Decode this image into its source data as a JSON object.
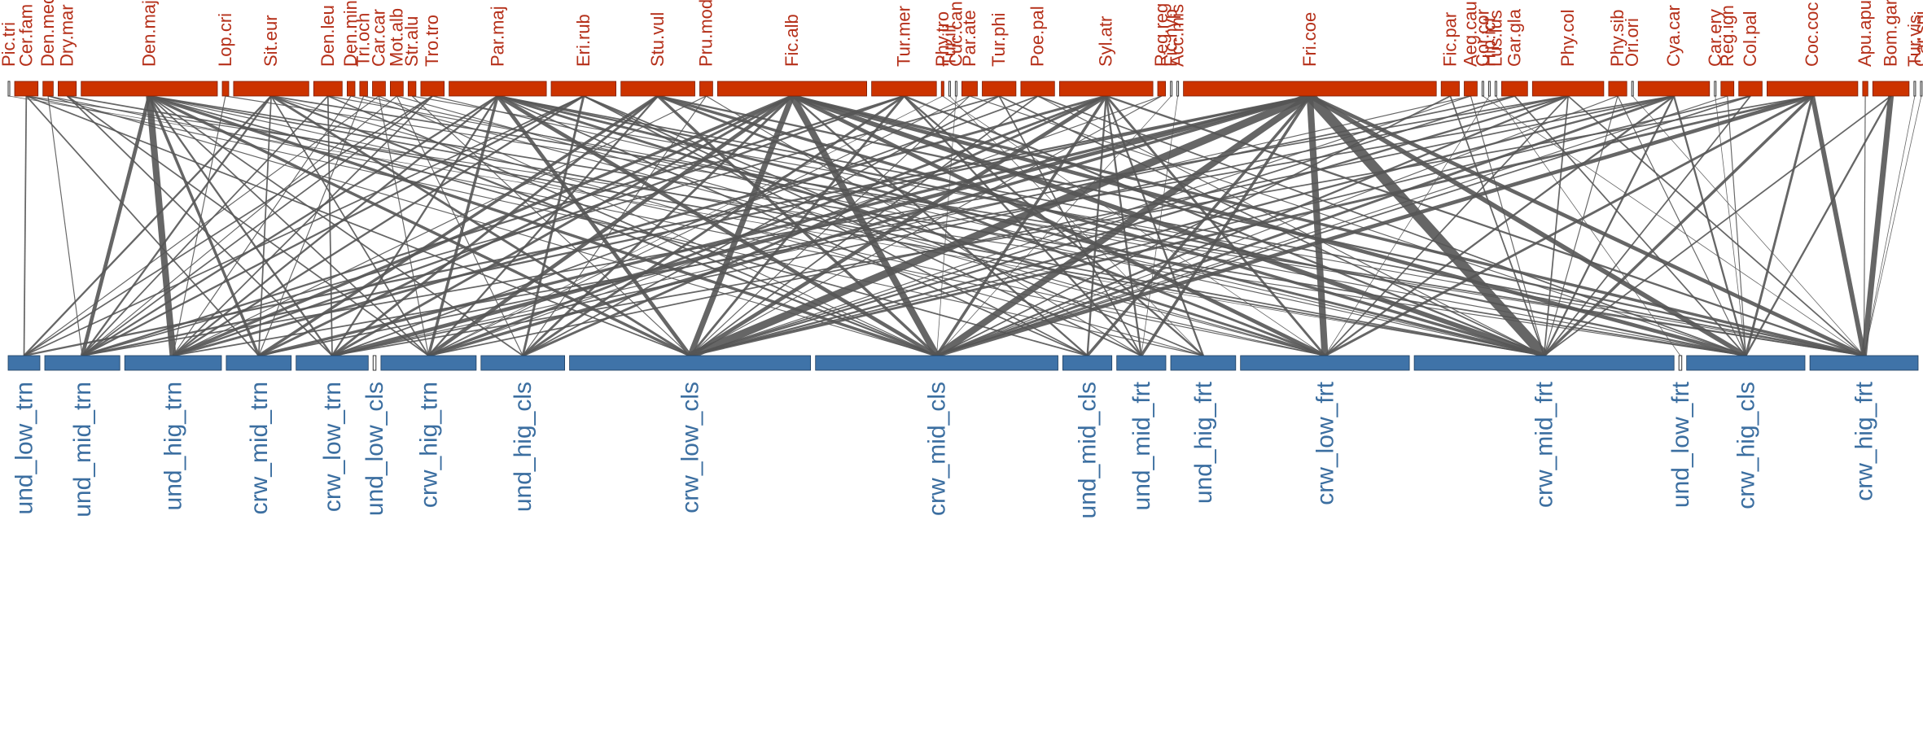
{
  "chart_data": {
    "type": "bipartite-network",
    "colors": {
      "top_nodes": "#cc3300",
      "bottom_nodes": "#3f73a8",
      "links": "#555555",
      "top_labels": "#b5301a",
      "bottom_labels": "#3b6ea0"
    },
    "top_nodes": [
      {
        "label": "Pic.tri",
        "weight": 1
      },
      {
        "label": "Cer.fam",
        "weight": 18
      },
      {
        "label": "Den.med",
        "weight": 8
      },
      {
        "label": "Dry.mar",
        "weight": 14
      },
      {
        "label": "Den.maj",
        "weight": 105
      },
      {
        "label": "Lop.cri",
        "weight": 5
      },
      {
        "label": "Sit.eur",
        "weight": 58
      },
      {
        "label": "Den.leu",
        "weight": 22
      },
      {
        "label": "Den.min",
        "weight": 6
      },
      {
        "label": "Tri.och",
        "weight": 6
      },
      {
        "label": "Car.car",
        "weight": 10
      },
      {
        "label": "Mot.alb",
        "weight": 10
      },
      {
        "label": "Str.alu",
        "weight": 6
      },
      {
        "label": "Tro.tro",
        "weight": 18
      },
      {
        "label": "Par.maj",
        "weight": 75
      },
      {
        "label": "Eri.rub",
        "weight": 50
      },
      {
        "label": "Stu.vul",
        "weight": 57
      },
      {
        "label": "Pru.mod",
        "weight": 10
      },
      {
        "label": "Fic.alb",
        "weight": 115
      },
      {
        "label": "Tur.mer",
        "weight": 50
      },
      {
        "label": "Phy.tro",
        "weight": 2
      },
      {
        "label": "Tur.ili",
        "weight": 1
      },
      {
        "label": "Cuc.can",
        "weight": 1
      },
      {
        "label": "Par.ate",
        "weight": 12
      },
      {
        "label": "Tur.phi",
        "weight": 26
      },
      {
        "label": "Poe.pal",
        "weight": 26
      },
      {
        "label": "Syl.atr",
        "weight": 72
      },
      {
        "label": "Reg.reg",
        "weight": 6
      },
      {
        "label": "Fic.hyp",
        "weight": 1
      },
      {
        "label": "Acc.mis",
        "weight": 1
      },
      {
        "label": "Fri.coe",
        "weight": 195
      },
      {
        "label": "Fic.par",
        "weight": 14
      },
      {
        "label": "Aeg.cau",
        "weight": 10
      },
      {
        "label": "Cor.cor",
        "weight": 1
      },
      {
        "label": "Hip.ict",
        "weight": 1
      },
      {
        "label": "Lus.lus",
        "weight": 1
      },
      {
        "label": "Gar.gla",
        "weight": 20
      },
      {
        "label": "Phy.col",
        "weight": 55
      },
      {
        "label": "Phy.sib",
        "weight": 14
      },
      {
        "label": "Ori.ori",
        "weight": 1
      },
      {
        "label": "Cya.car",
        "weight": 55
      },
      {
        "label": "Car.ery",
        "weight": 1
      },
      {
        "label": "Reg.ign",
        "weight": 10
      },
      {
        "label": "Col.pal",
        "weight": 18
      },
      {
        "label": "Coc.coc",
        "weight": 70
      },
      {
        "label": "Apu.apu",
        "weight": 4
      },
      {
        "label": "Bom.gar",
        "weight": 28
      },
      {
        "label": "Tur.vis",
        "weight": 1
      },
      {
        "label": "Car.spi",
        "weight": 1
      }
    ],
    "bottom_nodes": [
      {
        "label": "und_low_trn",
        "weight": 22
      },
      {
        "label": "und_mid_trn",
        "weight": 52
      },
      {
        "label": "und_hig_trn",
        "weight": 67
      },
      {
        "label": "crw_mid_trn",
        "weight": 45
      },
      {
        "label": "crw_low_trn",
        "weight": 50
      },
      {
        "label": "und_low_cls",
        "weight": 2
      },
      {
        "label": "crw_hig_trn",
        "weight": 66
      },
      {
        "label": "und_hig_cls",
        "weight": 58
      },
      {
        "label": "crw_low_cls",
        "weight": 167
      },
      {
        "label": "crw_mid_cls",
        "weight": 168
      },
      {
        "label": "und_mid_cls",
        "weight": 34
      },
      {
        "label": "und_mid_frt",
        "weight": 34
      },
      {
        "label": "und_hig_frt",
        "weight": 45
      },
      {
        "label": "crw_low_frt",
        "weight": 117
      },
      {
        "label": "crw_mid_frt",
        "weight": 180
      },
      {
        "label": "und_low_frt",
        "weight": 2
      },
      {
        "label": "crw_hig_cls",
        "weight": 82
      },
      {
        "label": "crw_hig_frt",
        "weight": 75
      }
    ],
    "links": [
      [
        "Pic.tri",
        "crw_mid_frt",
        1
      ],
      [
        "Cer.fam",
        "und_low_trn",
        3
      ],
      [
        "Cer.fam",
        "crw_mid_trn",
        3
      ],
      [
        "Cer.fam",
        "crw_low_cls",
        3
      ],
      [
        "Cer.fam",
        "und_hig_frt",
        2
      ],
      [
        "Cer.fam",
        "crw_hig_cls",
        2
      ],
      [
        "Den.med",
        "und_mid_trn",
        2
      ],
      [
        "Den.med",
        "crw_low_frt",
        2
      ],
      [
        "Den.med",
        "crw_mid_cls",
        2
      ],
      [
        "Dry.mar",
        "crw_low_trn",
        3
      ],
      [
        "Dry.mar",
        "crw_hig_trn",
        3
      ],
      [
        "Dry.mar",
        "crw_mid_frt",
        3
      ],
      [
        "Den.maj",
        "und_mid_trn",
        8
      ],
      [
        "Den.maj",
        "und_hig_trn",
        14
      ],
      [
        "Den.maj",
        "crw_mid_trn",
        6
      ],
      [
        "Den.maj",
        "crw_low_trn",
        4
      ],
      [
        "Den.maj",
        "crw_hig_trn",
        3
      ],
      [
        "Den.maj",
        "crw_low_cls",
        6
      ],
      [
        "Den.maj",
        "crw_mid_cls",
        6
      ],
      [
        "Den.maj",
        "und_mid_cls",
        3
      ],
      [
        "Den.maj",
        "crw_hig_cls",
        3
      ],
      [
        "Den.maj",
        "crw_mid_frt",
        3
      ],
      [
        "Den.maj",
        "crw_low_frt",
        2
      ],
      [
        "Den.maj",
        "und_hig_cls",
        3
      ],
      [
        "Lop.cri",
        "und_hig_trn",
        2
      ],
      [
        "Lop.cri",
        "crw_hig_frt",
        2
      ],
      [
        "Sit.eur",
        "und_low_trn",
        4
      ],
      [
        "Sit.eur",
        "und_mid_trn",
        4
      ],
      [
        "Sit.eur",
        "crw_mid_trn",
        3
      ],
      [
        "Sit.eur",
        "crw_hig_trn",
        3
      ],
      [
        "Sit.eur",
        "crw_low_cls",
        5
      ],
      [
        "Sit.eur",
        "crw_mid_cls",
        4
      ],
      [
        "Sit.eur",
        "und_hig_frt",
        2
      ],
      [
        "Sit.eur",
        "crw_hig_frt",
        3
      ],
      [
        "Den.leu",
        "und_mid_trn",
        3
      ],
      [
        "Den.leu",
        "crw_low_trn",
        3
      ],
      [
        "Den.leu",
        "crw_mid_cls",
        3
      ],
      [
        "Den.leu",
        "crw_hig_cls",
        2
      ],
      [
        "Den.min",
        "und_hig_trn",
        2
      ],
      [
        "Den.min",
        "crw_low_frt",
        2
      ],
      [
        "Tri.och",
        "crw_mid_trn",
        2
      ],
      [
        "Tri.och",
        "crw_mid_frt",
        2
      ],
      [
        "Car.car",
        "und_low_trn",
        2
      ],
      [
        "Car.car",
        "crw_hig_trn",
        2
      ],
      [
        "Car.car",
        "crw_mid_cls",
        2
      ],
      [
        "Mot.alb",
        "und_mid_trn",
        2
      ],
      [
        "Mot.alb",
        "und_hig_cls",
        2
      ],
      [
        "Mot.alb",
        "crw_low_frt",
        2
      ],
      [
        "Str.alu",
        "crw_low_cls",
        2
      ],
      [
        "Str.alu",
        "crw_hig_frt",
        2
      ],
      [
        "Tro.tro",
        "und_low_trn",
        3
      ],
      [
        "Tro.tro",
        "und_mid_trn",
        3
      ],
      [
        "Tro.tro",
        "und_hig_trn",
        3
      ],
      [
        "Tro.tro",
        "crw_mid_frt",
        2
      ],
      [
        "Par.maj",
        "und_mid_trn",
        4
      ],
      [
        "Par.maj",
        "und_hig_trn",
        4
      ],
      [
        "Par.maj",
        "crw_low_trn",
        4
      ],
      [
        "Par.maj",
        "crw_hig_trn",
        6
      ],
      [
        "Par.maj",
        "crw_low_cls",
        8
      ],
      [
        "Par.maj",
        "crw_mid_cls",
        8
      ],
      [
        "Par.maj",
        "und_mid_cls",
        3
      ],
      [
        "Par.maj",
        "crw_low_frt",
        5
      ],
      [
        "Par.maj",
        "crw_mid_frt",
        5
      ],
      [
        "Par.maj",
        "crw_hig_cls",
        4
      ],
      [
        "Par.maj",
        "crw_hig_frt",
        3
      ],
      [
        "Eri.rub",
        "und_low_trn",
        3
      ],
      [
        "Eri.rub",
        "und_mid_trn",
        4
      ],
      [
        "Eri.rub",
        "und_hig_trn",
        4
      ],
      [
        "Eri.rub",
        "und_hig_cls",
        5
      ],
      [
        "Eri.rub",
        "und_mid_cls",
        3
      ],
      [
        "Eri.rub",
        "und_mid_frt",
        3
      ],
      [
        "Eri.rub",
        "und_hig_frt",
        3
      ],
      [
        "Stu.vul",
        "crw_mid_trn",
        6
      ],
      [
        "Stu.vul",
        "crw_low_trn",
        5
      ],
      [
        "Stu.vul",
        "crw_hig_trn",
        4
      ],
      [
        "Stu.vul",
        "crw_mid_cls",
        6
      ],
      [
        "Stu.vul",
        "crw_low_frt",
        5
      ],
      [
        "Stu.vul",
        "crw_mid_frt",
        6
      ],
      [
        "Stu.vul",
        "crw_hig_frt",
        4
      ],
      [
        "Pru.mod",
        "und_hig_trn",
        2
      ],
      [
        "Pru.mod",
        "und_mid_frt",
        2
      ],
      [
        "Pru.mod",
        "und_hig_cls",
        2
      ],
      [
        "Fic.alb",
        "und_hig_trn",
        6
      ],
      [
        "Fic.alb",
        "crw_mid_trn",
        5
      ],
      [
        "Fic.alb",
        "crw_low_trn",
        5
      ],
      [
        "Fic.alb",
        "crw_hig_trn",
        8
      ],
      [
        "Fic.alb",
        "und_hig_cls",
        5
      ],
      [
        "Fic.alb",
        "crw_low_cls",
        12
      ],
      [
        "Fic.alb",
        "crw_mid_cls",
        14
      ],
      [
        "Fic.alb",
        "und_mid_cls",
        4
      ],
      [
        "Fic.alb",
        "crw_low_frt",
        8
      ],
      [
        "Fic.alb",
        "crw_mid_frt",
        10
      ],
      [
        "Fic.alb",
        "crw_hig_cls",
        8
      ],
      [
        "Fic.alb",
        "crw_hig_frt",
        6
      ],
      [
        "Tur.mer",
        "und_mid_trn",
        4
      ],
      [
        "Tur.mer",
        "und_hig_trn",
        4
      ],
      [
        "Tur.mer",
        "und_hig_cls",
        5
      ],
      [
        "Tur.mer",
        "crw_low_cls",
        5
      ],
      [
        "Tur.mer",
        "und_mid_frt",
        4
      ],
      [
        "Tur.mer",
        "und_hig_frt",
        4
      ],
      [
        "Tur.mer",
        "crw_mid_frt",
        4
      ],
      [
        "Phy.tro",
        "crw_hig_trn",
        1
      ],
      [
        "Phy.tro",
        "crw_low_frt",
        1
      ],
      [
        "Tur.ili",
        "und_hig_frt",
        1
      ],
      [
        "Cuc.can",
        "crw_mid_cls",
        1
      ],
      [
        "Par.ate",
        "crw_hig_trn",
        2
      ],
      [
        "Par.ate",
        "crw_low_cls",
        2
      ],
      [
        "Par.ate",
        "crw_hig_cls",
        2
      ],
      [
        "Tur.phi",
        "und_mid_trn",
        3
      ],
      [
        "Tur.phi",
        "und_hig_cls",
        3
      ],
      [
        "Tur.phi",
        "und_mid_frt",
        3
      ],
      [
        "Tur.phi",
        "crw_mid_frt",
        3
      ],
      [
        "Poe.pal",
        "crw_low_trn",
        3
      ],
      [
        "Poe.pal",
        "crw_low_cls",
        3
      ],
      [
        "Poe.pal",
        "crw_hig_cls",
        3
      ],
      [
        "Poe.pal",
        "crw_mid_frt",
        2
      ],
      [
        "Syl.atr",
        "und_hig_trn",
        5
      ],
      [
        "Syl.atr",
        "crw_hig_trn",
        5
      ],
      [
        "Syl.atr",
        "und_hig_cls",
        5
      ],
      [
        "Syl.atr",
        "crw_low_cls",
        8
      ],
      [
        "Syl.atr",
        "crw_mid_cls",
        6
      ],
      [
        "Syl.atr",
        "und_mid_cls",
        4
      ],
      [
        "Syl.atr",
        "und_mid_frt",
        4
      ],
      [
        "Syl.atr",
        "und_hig_frt",
        4
      ],
      [
        "Syl.atr",
        "crw_low_frt",
        5
      ],
      [
        "Syl.atr",
        "crw_hig_frt",
        4
      ],
      [
        "Reg.reg",
        "crw_hig_trn",
        2
      ],
      [
        "Reg.reg",
        "crw_low_cls",
        2
      ],
      [
        "Fic.hyp",
        "crw_mid_cls",
        1
      ],
      [
        "Acc.mis",
        "und_mid_frt",
        1
      ],
      [
        "Fri.coe",
        "und_low_trn",
        4
      ],
      [
        "Fri.coe",
        "und_mid_trn",
        4
      ],
      [
        "Fri.coe",
        "crw_mid_trn",
        6
      ],
      [
        "Fri.coe",
        "crw_low_trn",
        8
      ],
      [
        "Fri.coe",
        "crw_hig_trn",
        6
      ],
      [
        "Fri.coe",
        "crw_low_cls",
        16
      ],
      [
        "Fri.coe",
        "crw_mid_cls",
        14
      ],
      [
        "Fri.coe",
        "und_mid_cls",
        6
      ],
      [
        "Fri.coe",
        "und_mid_frt",
        6
      ],
      [
        "Fri.coe",
        "crw_low_frt",
        14
      ],
      [
        "Fri.coe",
        "crw_mid_frt",
        22
      ],
      [
        "Fri.coe",
        "crw_hig_cls",
        10
      ],
      [
        "Fri.coe",
        "crw_hig_frt",
        8
      ],
      [
        "Fic.par",
        "crw_mid_cls",
        3
      ],
      [
        "Fic.par",
        "crw_mid_frt",
        3
      ],
      [
        "Aeg.cau",
        "crw_low_trn",
        2
      ],
      [
        "Aeg.cau",
        "crw_low_cls",
        2
      ],
      [
        "Aeg.cau",
        "crw_mid_frt",
        2
      ],
      [
        "Cor.cor",
        "crw_hig_frt",
        1
      ],
      [
        "Hip.ict",
        "crw_low_frt",
        1
      ],
      [
        "Lus.lus",
        "und_low_frt",
        1
      ],
      [
        "Gar.gla",
        "crw_mid_trn",
        3
      ],
      [
        "Gar.gla",
        "crw_low_cls",
        3
      ],
      [
        "Gar.gla",
        "crw_hig_cls",
        3
      ],
      [
        "Phy.col",
        "und_mid_trn",
        3
      ],
      [
        "Phy.col",
        "crw_low_trn",
        3
      ],
      [
        "Phy.col",
        "crw_low_cls",
        4
      ],
      [
        "Phy.col",
        "crw_mid_cls",
        4
      ],
      [
        "Phy.col",
        "crw_low_frt",
        3
      ],
      [
        "Phy.col",
        "crw_mid_frt",
        3
      ],
      [
        "Phy.col",
        "crw_hig_frt",
        3
      ],
      [
        "Phy.sib",
        "crw_mid_cls",
        2
      ],
      [
        "Phy.sib",
        "crw_hig_cls",
        2
      ],
      [
        "Phy.sib",
        "crw_mid_frt",
        2
      ],
      [
        "Ori.ori",
        "crw_hig_frt",
        1
      ],
      [
        "Cya.car",
        "und_hig_trn",
        3
      ],
      [
        "Cya.car",
        "crw_hig_trn",
        3
      ],
      [
        "Cya.car",
        "crw_low_cls",
        4
      ],
      [
        "Cya.car",
        "crw_mid_cls",
        5
      ],
      [
        "Cya.car",
        "crw_low_frt",
        4
      ],
      [
        "Cya.car",
        "crw_mid_frt",
        4
      ],
      [
        "Cya.car",
        "crw_hig_cls",
        4
      ],
      [
        "Car.ery",
        "crw_hig_cls",
        1
      ],
      [
        "Reg.ign",
        "crw_mid_cls",
        2
      ],
      [
        "Reg.ign",
        "crw_hig_cls",
        2
      ],
      [
        "Col.pal",
        "crw_low_cls",
        3
      ],
      [
        "Col.pal",
        "crw_mid_cls",
        3
      ],
      [
        "Col.pal",
        "crw_mid_frt",
        3
      ],
      [
        "Coc.coc",
        "crw_low_trn",
        3
      ],
      [
        "Coc.coc",
        "crw_low_cls",
        5
      ],
      [
        "Coc.coc",
        "crw_mid_cls",
        8
      ],
      [
        "Coc.coc",
        "crw_low_frt",
        5
      ],
      [
        "Coc.coc",
        "crw_mid_frt",
        6
      ],
      [
        "Coc.coc",
        "crw_hig_cls",
        5
      ],
      [
        "Coc.coc",
        "crw_hig_frt",
        10
      ],
      [
        "Apu.apu",
        "crw_hig_frt",
        2
      ],
      [
        "Bom.gar",
        "crw_mid_frt",
        3
      ],
      [
        "Bom.gar",
        "crw_hig_cls",
        4
      ],
      [
        "Bom.gar",
        "crw_hig_frt",
        12
      ],
      [
        "Tur.vis",
        "crw_hig_frt",
        1
      ],
      [
        "Car.spi",
        "crw_hig_frt",
        1
      ]
    ]
  }
}
